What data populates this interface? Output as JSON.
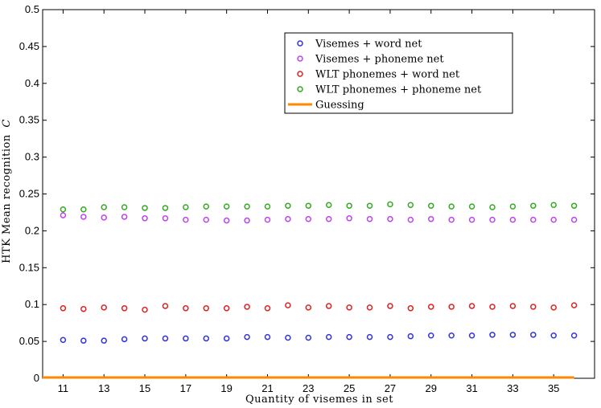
{
  "chart_data": {
    "type": "scatter",
    "xlabel": "Quantity of visemes in set",
    "ylabel": "HTK Mean recognition C",
    "ylabel_main": "HTK Mean recognition",
    "ylabel_symbol": "C",
    "xlim": [
      10,
      37
    ],
    "ylim": [
      0,
      0.5
    ],
    "x_ticks": [
      11,
      13,
      15,
      17,
      19,
      21,
      23,
      25,
      27,
      29,
      31,
      33,
      35
    ],
    "x_tick_labels": [
      "11",
      "13",
      "15",
      "17",
      "19",
      "21",
      "23",
      "25",
      "27",
      "29",
      "31",
      "33",
      "35"
    ],
    "y_ticks": [
      0,
      0.05,
      0.1,
      0.15,
      0.2,
      0.25,
      0.3,
      0.35,
      0.4,
      0.45,
      0.5
    ],
    "y_tick_labels": [
      "0",
      "0.05",
      "0.1",
      "0.15",
      "0.2",
      "0.25",
      "0.3",
      "0.35",
      "0.4",
      "0.45",
      "0.5"
    ],
    "grid": false,
    "legend_position": "top-right",
    "x": [
      11,
      12,
      13,
      14,
      15,
      16,
      17,
      18,
      19,
      20,
      21,
      22,
      23,
      24,
      25,
      26,
      27,
      28,
      29,
      30,
      31,
      32,
      33,
      34,
      35,
      36
    ],
    "series": [
      {
        "name": "Visemes + word net",
        "color": "#3333dd",
        "marker": "circle",
        "values": [
          0.052,
          0.051,
          0.051,
          0.053,
          0.054,
          0.054,
          0.054,
          0.054,
          0.054,
          0.056,
          0.056,
          0.055,
          0.055,
          0.056,
          0.056,
          0.056,
          0.056,
          0.057,
          0.058,
          0.058,
          0.058,
          0.059,
          0.059,
          0.059,
          0.058,
          0.058
        ]
      },
      {
        "name": "Visemes + phoneme net",
        "color": "#bb44ee",
        "marker": "circle",
        "values": [
          0.221,
          0.219,
          0.218,
          0.219,
          0.217,
          0.217,
          0.215,
          0.215,
          0.214,
          0.214,
          0.215,
          0.216,
          0.216,
          0.216,
          0.217,
          0.216,
          0.216,
          0.215,
          0.216,
          0.215,
          0.215,
          0.215,
          0.215,
          0.215,
          0.215,
          0.215
        ]
      },
      {
        "name": "WLT phonemes + word net",
        "color": "#dd2222",
        "marker": "circle",
        "values": [
          0.095,
          0.094,
          0.096,
          0.095,
          0.093,
          0.098,
          0.095,
          0.095,
          0.095,
          0.097,
          0.095,
          0.099,
          0.096,
          0.098,
          0.096,
          0.096,
          0.098,
          0.095,
          0.097,
          0.097,
          0.098,
          0.097,
          0.098,
          0.097,
          0.096,
          0.099
        ]
      },
      {
        "name": "WLT phonemes + phoneme net",
        "color": "#33aa22",
        "marker": "circle",
        "values": [
          0.229,
          0.229,
          0.232,
          0.232,
          0.231,
          0.231,
          0.232,
          0.233,
          0.233,
          0.233,
          0.233,
          0.234,
          0.234,
          0.235,
          0.234,
          0.234,
          0.236,
          0.235,
          0.234,
          0.233,
          0.233,
          0.232,
          0.233,
          0.234,
          0.235,
          0.234
        ]
      },
      {
        "name": "Guessing",
        "color": "#ff8800",
        "marker": "line",
        "values": [
          0.0,
          0.0
        ]
      }
    ]
  }
}
